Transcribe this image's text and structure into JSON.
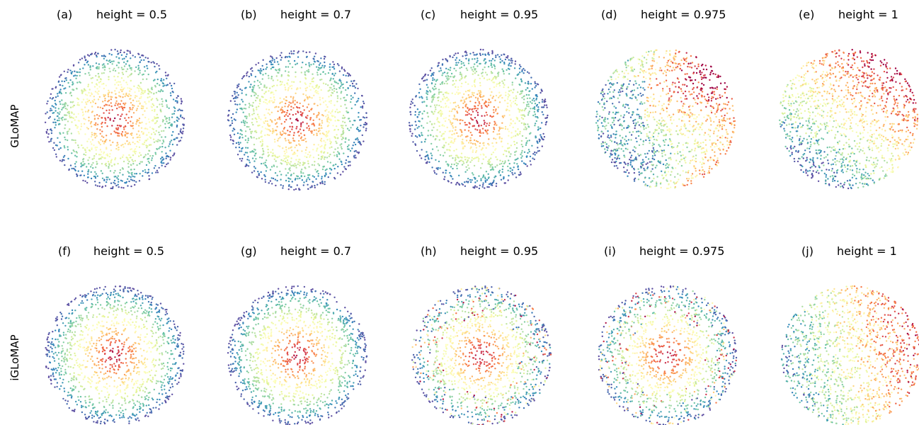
{
  "rows": [
    {
      "label": "GLoMAP"
    },
    {
      "label": "iGLoMAP"
    }
  ],
  "chart_data": [
    {
      "type": "scatter",
      "panel_letter": "(a)",
      "title": "height = 0.5",
      "method": "GLoMAP",
      "height": 0.5,
      "pattern": "radial",
      "sparse_outer": false
    },
    {
      "type": "scatter",
      "panel_letter": "(b)",
      "title": "height = 0.7",
      "method": "GLoMAP",
      "height": 0.7,
      "pattern": "radial",
      "sparse_outer": false
    },
    {
      "type": "scatter",
      "panel_letter": "(c)",
      "title": "height = 0.95",
      "method": "GLoMAP",
      "height": 0.95,
      "pattern": "radial",
      "sparse_outer": false
    },
    {
      "type": "scatter",
      "panel_letter": "(d)",
      "title": "height = 0.975",
      "method": "GLoMAP",
      "height": 0.975,
      "pattern": "mixed",
      "sparse_outer": false
    },
    {
      "type": "scatter",
      "panel_letter": "(e)",
      "title": "height = 1",
      "method": "GLoMAP",
      "height": 1,
      "pattern": "mixed",
      "sparse_outer": false
    },
    {
      "type": "scatter",
      "panel_letter": "(f)",
      "title": "height = 0.5",
      "method": "iGLoMAP",
      "height": 0.5,
      "pattern": "radial",
      "sparse_outer": false
    },
    {
      "type": "scatter",
      "panel_letter": "(g)",
      "title": "height = 0.7",
      "method": "iGLoMAP",
      "height": 0.7,
      "pattern": "radial",
      "sparse_outer": false
    },
    {
      "type": "scatter",
      "panel_letter": "(h)",
      "title": "height = 0.95",
      "method": "iGLoMAP",
      "height": 0.95,
      "pattern": "radial",
      "sparse_outer": true
    },
    {
      "type": "scatter",
      "panel_letter": "(i)",
      "title": "height = 0.975",
      "method": "iGLoMAP",
      "height": 0.975,
      "pattern": "radial",
      "sparse_outer": true
    },
    {
      "type": "scatter",
      "panel_letter": "(j)",
      "title": "height = 1",
      "method": "iGLoMAP",
      "height": 1,
      "pattern": "mixed",
      "sparse_outer": false
    }
  ],
  "colormap": {
    "name": "Spectral",
    "stops": [
      "#9e0142",
      "#d53e4f",
      "#f46d43",
      "#fdae61",
      "#fee08b",
      "#ffffbf",
      "#e6f598",
      "#abdda4",
      "#66c2a5",
      "#3288bd",
      "#5e4fa2"
    ]
  }
}
